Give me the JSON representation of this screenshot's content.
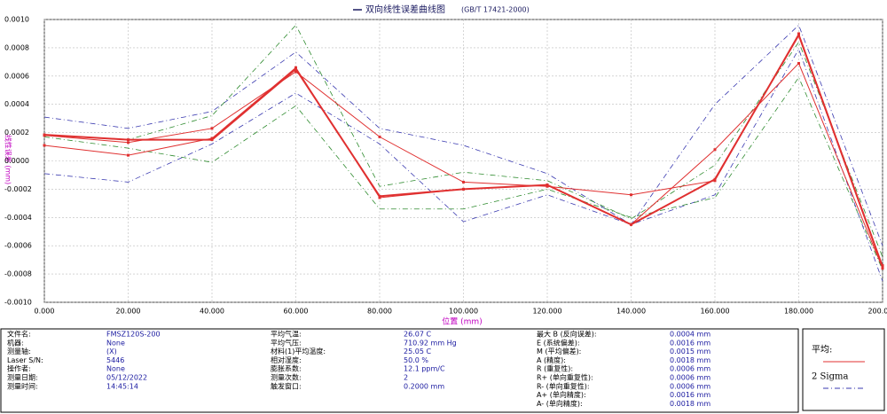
{
  "chart_data": {
    "type": "line",
    "title": "双向线性误差曲线图",
    "subtitle": "(GB/T 17421-2000)",
    "y_label": "线性误差 (mm)",
    "x_label": "位置 (mm)",
    "x": [
      0,
      20,
      40,
      60,
      80,
      100,
      120,
      140,
      160,
      180,
      200
    ],
    "xlim": [
      0,
      200
    ],
    "ylim": [
      -0.001,
      0.001
    ],
    "xticks": [
      {
        "value": 0,
        "label": "0.000"
      },
      {
        "value": 20,
        "label": "20.000"
      },
      {
        "value": 40,
        "label": "40.000"
      },
      {
        "value": 60,
        "label": "60.000"
      },
      {
        "value": 80,
        "label": "80.000"
      },
      {
        "value": 100,
        "label": "100.000"
      },
      {
        "value": 120,
        "label": "120.000"
      },
      {
        "value": 140,
        "label": "140.000"
      },
      {
        "value": 160,
        "label": "160.000"
      },
      {
        "value": 180,
        "label": "180.000"
      },
      {
        "value": 200,
        "label": "200.000"
      }
    ],
    "yticks": [
      {
        "value": 0.001,
        "label": "0.0010"
      },
      {
        "value": 0.0008,
        "label": "0.0008"
      },
      {
        "value": 0.0006,
        "label": "0.0006"
      },
      {
        "value": 0.0004,
        "label": "0.0004"
      },
      {
        "value": 0.0002,
        "label": "0.0002"
      },
      {
        "value": 0,
        "label": "0.0000"
      },
      {
        "value": -0.0002,
        "label": "-0.0002"
      },
      {
        "value": -0.0004,
        "label": "-0.0004"
      },
      {
        "value": -0.0006,
        "label": "-0.0006"
      },
      {
        "value": -0.0008,
        "label": "-0.0008"
      },
      {
        "value": -0.001,
        "label": "-0.0010"
      }
    ],
    "grid": true,
    "series": [
      {
        "color": "#3a3ab0",
        "dash": "dashdot",
        "values": [
          0.00031,
          0.00023,
          0.00035,
          0.00077,
          0.00023,
          0.00011,
          -9e-05,
          -0.00045,
          0.0004,
          0.00096,
          -0.0006
        ]
      },
      {
        "color": "#3a3ab0",
        "dash": "dashdot",
        "values": [
          -9e-05,
          -0.00015,
          0.00012,
          0.00048,
          0.00012,
          -0.00043,
          -0.00024,
          -0.00045,
          -0.00024,
          0.00079,
          -0.00085
        ]
      },
      {
        "color": "#2e8b2e",
        "dash": "dashdot",
        "values": [
          0.00018,
          0.00015,
          0.00032,
          0.00096,
          -0.00018,
          -8e-05,
          -0.00014,
          -0.00041,
          -3e-05,
          0.00084,
          -0.00068
        ]
      },
      {
        "color": "#2e8b2e",
        "dash": "dashdot",
        "values": [
          0.00017,
          9e-05,
          -1e-05,
          0.00039,
          -0.00034,
          -0.00034,
          -0.0002,
          -0.0004,
          -0.00026,
          0.00059,
          -0.00077
        ]
      },
      {
        "color": "#e03030",
        "width": 1,
        "markers": true,
        "values": [
          0.00018,
          0.00013,
          0.00023,
          0.00063,
          0.00017,
          -0.00015,
          -0.00018,
          -0.00024,
          -0.00014,
          0.0009,
          -0.00074
        ]
      },
      {
        "color": "#e03030",
        "width": 1,
        "markers": true,
        "values": [
          0.00011,
          4e-05,
          0.00016,
          0.00066,
          -0.00026,
          -0.0002,
          -0.00017,
          -0.00045,
          8e-05,
          0.00069,
          -0.00076
        ]
      },
      {
        "name": "平均:",
        "color": "#e03030",
        "width": 2,
        "markers": true,
        "values": [
          0.000185,
          0.00015,
          0.00015,
          0.00065,
          -0.00025,
          -0.0002,
          -0.00017,
          -0.00045,
          -0.00013,
          0.00089,
          -0.00075
        ]
      }
    ],
    "legend": [
      {
        "label": "平均:",
        "color": "#e03030",
        "dash": "solid"
      },
      {
        "label": "2 Sigma",
        "color": "#3a3ab0",
        "dash": "dashdot"
      }
    ]
  },
  "info": {
    "columns": [
      [
        {
          "label": "文件名:",
          "value": "FMSZ120S-200"
        },
        {
          "label": "机器:",
          "value": "None"
        },
        {
          "label": "测量轴:",
          "value": "(X)"
        },
        {
          "label": "Laser S/N:",
          "value": "5446"
        },
        {
          "label": "操作者:",
          "value": "None"
        },
        {
          "label": "测量日期:",
          "value": "05/12/2022"
        },
        {
          "label": "测量时间:",
          "value": "14:45:14"
        }
      ],
      [
        {
          "label": "平均气温:",
          "value": "26.07 C"
        },
        {
          "label": "平均气压:",
          "value": "710.92 mm Hg"
        },
        {
          "label": "材料(1)平均温度:",
          "value": "25.05 C"
        },
        {
          "label": "相对湿度:",
          "value": "50.0 %"
        },
        {
          "label": "膨胀系数:",
          "value": "12.1 ppm/C"
        },
        {
          "label": "测量次数:",
          "value": "2"
        },
        {
          "label": "触发窗口:",
          "value": "0.2000 mm"
        }
      ],
      [
        {
          "label": "最大 B (反向误差):",
          "value": "0.0004 mm"
        },
        {
          "label": "E (系统偏差):",
          "value": "0.0016 mm"
        },
        {
          "label": "M (平均偏差):",
          "value": "0.0015 mm"
        },
        {
          "label": "A (精度):",
          "value": "0.0018 mm"
        },
        {
          "label": "R (重复性):",
          "value": "0.0006 mm"
        },
        {
          "label": "R+ (单向重复性):",
          "value": "0.0006 mm"
        },
        {
          "label": "R- (单向重复性):",
          "value": "0.0006 mm"
        },
        {
          "label": "A+ (单向精度):",
          "value": "0.0016 mm"
        },
        {
          "label": "A- (单向精度):",
          "value": "0.0018 mm"
        }
      ]
    ]
  }
}
